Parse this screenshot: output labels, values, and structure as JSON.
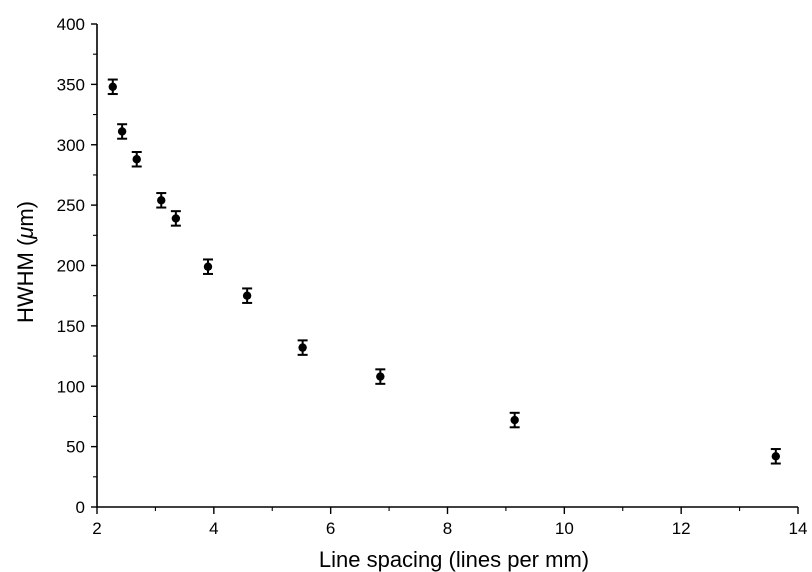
{
  "chart_data": {
    "type": "scatter",
    "xlabel": "Line spacing  (lines per mm)",
    "ylabel_prefix": "HWHM (",
    "ylabel_mu": "μ",
    "ylabel_suffix": "m)",
    "xlim": [
      2,
      14
    ],
    "ylim": [
      0,
      400
    ],
    "xticks": [
      2,
      4,
      6,
      8,
      10,
      12,
      14
    ],
    "yticks": [
      0,
      50,
      100,
      150,
      200,
      250,
      300,
      350,
      400
    ],
    "grid": false,
    "legend": "none",
    "points": [
      {
        "x": 2.27,
        "y": 348,
        "err": 6
      },
      {
        "x": 2.43,
        "y": 311,
        "err": 6
      },
      {
        "x": 2.68,
        "y": 288,
        "err": 6
      },
      {
        "x": 3.1,
        "y": 254,
        "err": 6
      },
      {
        "x": 3.35,
        "y": 239,
        "err": 6
      },
      {
        "x": 3.9,
        "y": 199,
        "err": 6
      },
      {
        "x": 4.57,
        "y": 175,
        "err": 6
      },
      {
        "x": 5.52,
        "y": 132,
        "err": 6
      },
      {
        "x": 6.85,
        "y": 108,
        "err": 6
      },
      {
        "x": 9.15,
        "y": 72,
        "err": 6
      },
      {
        "x": 13.62,
        "y": 42,
        "err": 6
      }
    ]
  }
}
